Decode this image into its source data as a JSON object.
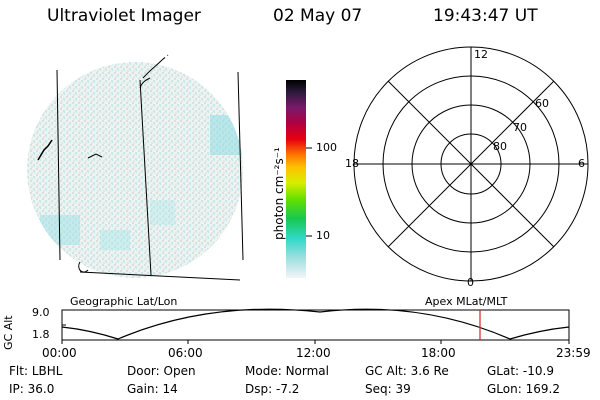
{
  "header": {
    "title": "Ultraviolet Imager",
    "date": "02 May 07",
    "time": "19:43:47 UT"
  },
  "colorbar": {
    "unit_label": "photon cm⁻²s⁻¹",
    "ticks": [
      "100",
      "10"
    ]
  },
  "polar_plot": {
    "mlt_labels": {
      "top": "12",
      "bottom": "0",
      "left": "18",
      "right": "6"
    },
    "lat_labels": [
      "60",
      "70",
      "80"
    ]
  },
  "orbit_panel": {
    "left_caption": "Geographic Lat/Lon",
    "right_caption": "Apex MLat/MLT",
    "y_axis_label": "GC Alt",
    "y_ticks": [
      "9.0",
      "1.8"
    ],
    "x_ticks": [
      "00:00",
      "06:00",
      "12:00",
      "18:00",
      "23:59"
    ],
    "current_time_marker": "19:43:47",
    "marker_color": "#e02020"
  },
  "status": {
    "row1": [
      {
        "label": "Flt:",
        "value": "LBHL"
      },
      {
        "label": "Door:",
        "value": "Open"
      },
      {
        "label": "Mode:",
        "value": "Normal"
      },
      {
        "label": "GC Alt:",
        "value": "3.6 Re"
      },
      {
        "label": "GLat:",
        "value": "-10.9"
      }
    ],
    "row2": [
      {
        "label": "IP:",
        "value": "36.0"
      },
      {
        "label": "Gain:",
        "value": "14"
      },
      {
        "label": "Dsp:",
        "value": "-7.2"
      },
      {
        "label": "Seq:",
        "value": "39"
      },
      {
        "label": "GLon:",
        "value": "169.2"
      }
    ]
  }
}
